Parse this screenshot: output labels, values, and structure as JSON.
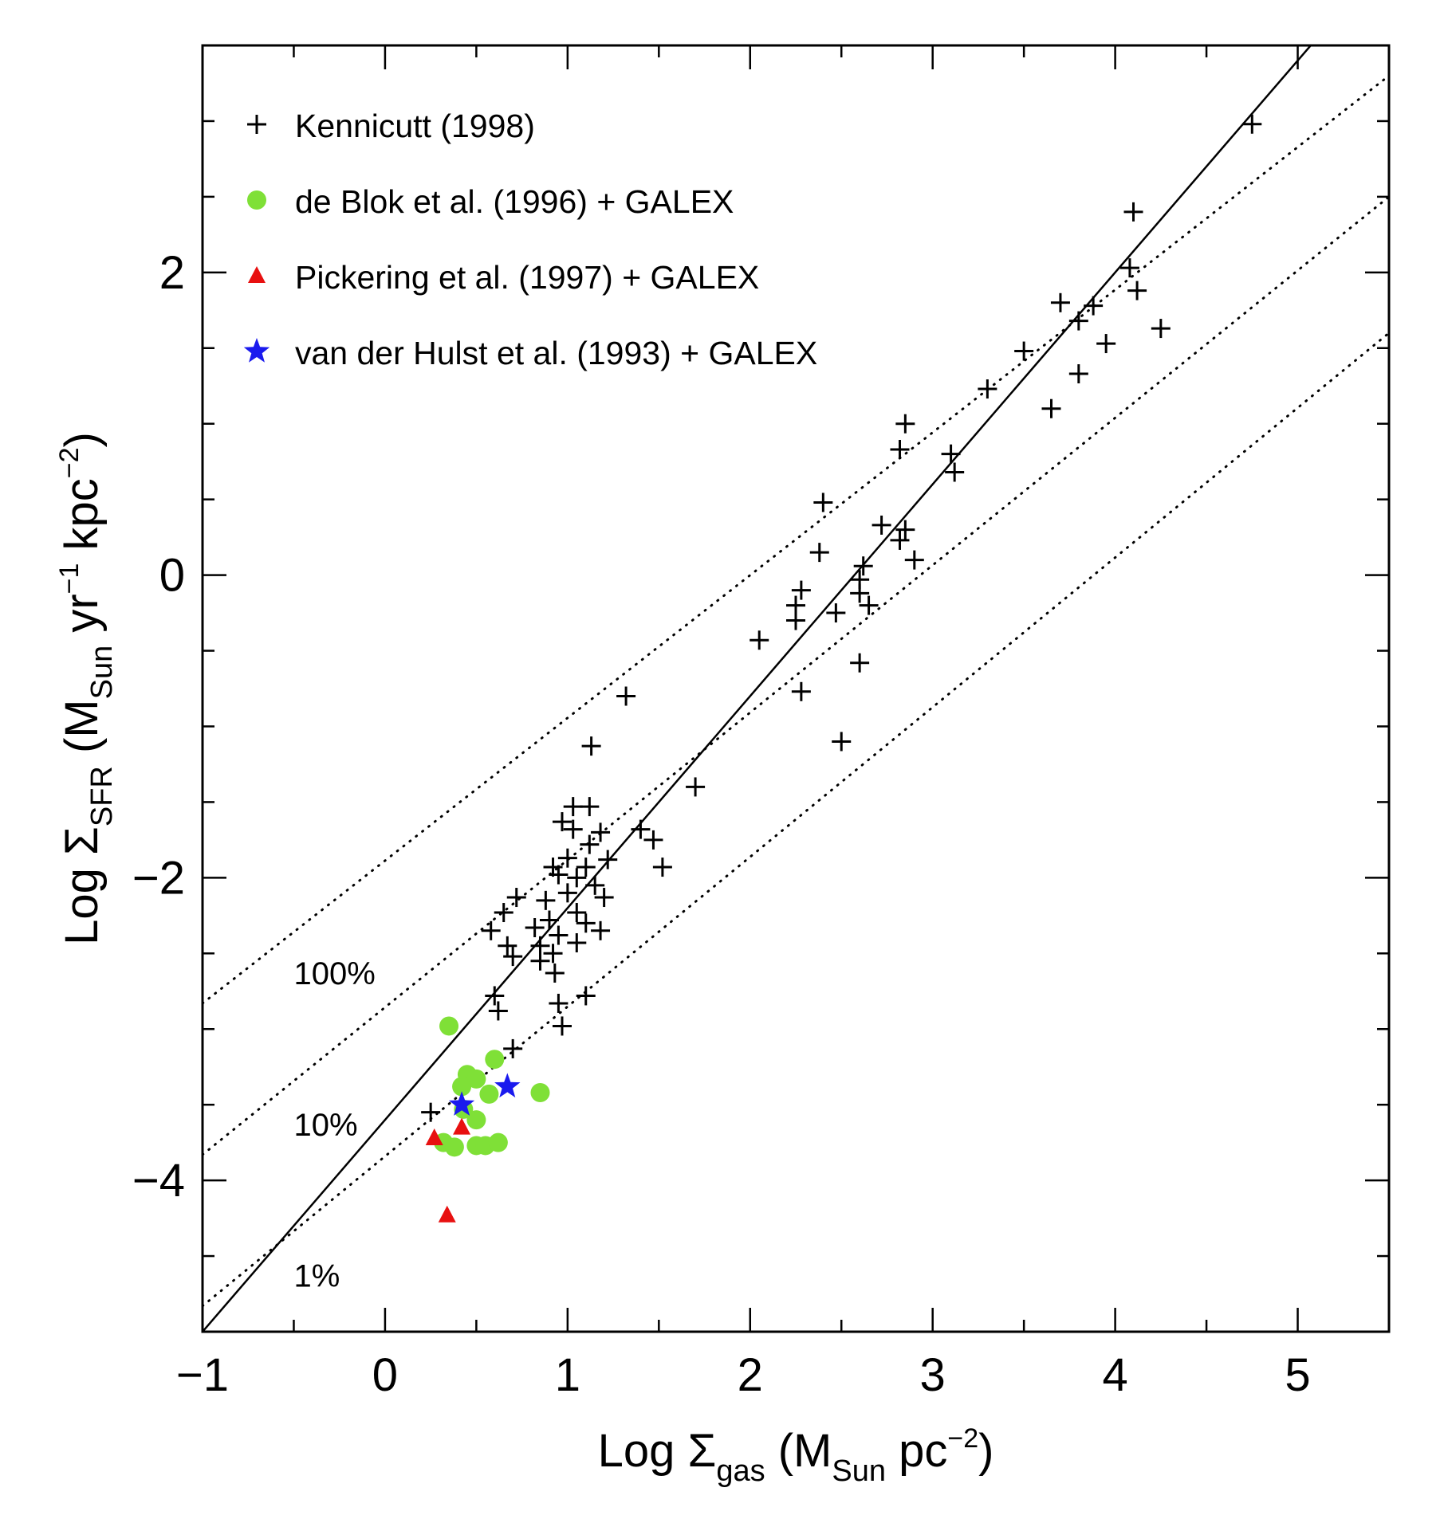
{
  "chart_data": {
    "type": "scatter",
    "title": "",
    "xlabel": {
      "prefix": "Log Σ",
      "sub": "gas",
      "unit_open": " (M",
      "unit_sub": "Sun",
      "unit_rest": " pc",
      "sup": "−2",
      "close": ")"
    },
    "ylabel": {
      "prefix": "Log Σ",
      "sub": "SFR",
      "unit_open": " (M",
      "unit_sub": "Sun",
      "mid": " yr",
      "sup1": "−1",
      "mid2": " kpc",
      "sup2": "−2",
      "close": ")"
    },
    "xlim": [
      -1,
      5.5
    ],
    "ylim": [
      -5,
      3.5
    ],
    "xticks": [
      -1,
      0,
      1,
      2,
      3,
      4,
      5
    ],
    "xtick_labels": [
      "−1",
      "0",
      "1",
      "2",
      "3",
      "4",
      "5"
    ],
    "yticks": [
      -4,
      -2,
      0,
      2
    ],
    "ytick_labels": [
      "−4",
      "−2",
      "0",
      "2"
    ],
    "lines": [
      {
        "name": "schmidt-law-fit",
        "style": "solid",
        "points": [
          [
            -1,
            -5.0
          ],
          [
            5.5,
            4.1
          ]
        ]
      },
      {
        "name": "efficiency-100",
        "style": "dotted",
        "label": "100%",
        "points": [
          [
            -1,
            -2.83
          ],
          [
            5.5,
            3.3
          ]
        ]
      },
      {
        "name": "efficiency-10",
        "style": "dotted",
        "label": "10%",
        "points": [
          [
            -1,
            -3.83
          ],
          [
            5.5,
            2.5
          ]
        ]
      },
      {
        "name": "efficiency-1",
        "style": "dotted",
        "label": "1%",
        "points": [
          [
            -1,
            -4.83
          ],
          [
            5.5,
            1.6
          ]
        ]
      }
    ],
    "annotations": [
      {
        "text": "100%",
        "x": -0.5,
        "y": -2.63
      },
      {
        "text": "10%",
        "x": -0.5,
        "y": -3.63
      },
      {
        "text": "1%",
        "x": -0.5,
        "y": -4.63
      }
    ],
    "legend_position": "top-left",
    "series": [
      {
        "name": "Kennicutt (1998)",
        "marker": "plus",
        "color": "#000000",
        "points": [
          [
            4.75,
            2.98
          ],
          [
            4.1,
            2.4
          ],
          [
            4.08,
            2.03
          ],
          [
            4.12,
            1.88
          ],
          [
            4.25,
            1.63
          ],
          [
            3.7,
            1.8
          ],
          [
            3.88,
            1.78
          ],
          [
            3.8,
            1.68
          ],
          [
            3.5,
            1.48
          ],
          [
            3.95,
            1.53
          ],
          [
            3.8,
            1.33
          ],
          [
            3.65,
            1.1
          ],
          [
            3.3,
            1.23
          ],
          [
            2.85,
            1.0
          ],
          [
            2.82,
            0.83
          ],
          [
            3.1,
            0.8
          ],
          [
            3.12,
            0.68
          ],
          [
            2.4,
            0.48
          ],
          [
            2.72,
            0.33
          ],
          [
            2.85,
            0.3
          ],
          [
            2.82,
            0.23
          ],
          [
            2.38,
            0.15
          ],
          [
            2.9,
            0.1
          ],
          [
            2.62,
            0.06
          ],
          [
            2.6,
            -0.03
          ],
          [
            2.28,
            -0.1
          ],
          [
            2.6,
            -0.12
          ],
          [
            2.25,
            -0.2
          ],
          [
            2.65,
            -0.2
          ],
          [
            2.47,
            -0.25
          ],
          [
            2.25,
            -0.3
          ],
          [
            2.05,
            -0.43
          ],
          [
            2.6,
            -0.58
          ],
          [
            2.28,
            -0.77
          ],
          [
            1.32,
            -0.8
          ],
          [
            2.5,
            -1.1
          ],
          [
            1.13,
            -1.13
          ],
          [
            1.7,
            -1.4
          ],
          [
            1.03,
            -1.53
          ],
          [
            1.12,
            -1.53
          ],
          [
            0.97,
            -1.63
          ],
          [
            1.03,
            -1.68
          ],
          [
            1.18,
            -1.7
          ],
          [
            1.4,
            -1.68
          ],
          [
            1.12,
            -1.78
          ],
          [
            1.47,
            -1.75
          ],
          [
            0.92,
            -1.93
          ],
          [
            1.0,
            -1.87
          ],
          [
            1.1,
            -1.93
          ],
          [
            1.22,
            -1.88
          ],
          [
            1.52,
            -1.93
          ],
          [
            0.95,
            -1.98
          ],
          [
            1.05,
            -2.0
          ],
          [
            1.15,
            -2.05
          ],
          [
            1.0,
            -2.1
          ],
          [
            0.72,
            -2.13
          ],
          [
            0.88,
            -2.15
          ],
          [
            1.2,
            -2.13
          ],
          [
            1.05,
            -2.23
          ],
          [
            0.65,
            -2.23
          ],
          [
            0.9,
            -2.28
          ],
          [
            1.1,
            -2.3
          ],
          [
            0.82,
            -2.33
          ],
          [
            0.95,
            -2.38
          ],
          [
            1.18,
            -2.35
          ],
          [
            0.58,
            -2.35
          ],
          [
            0.67,
            -2.45
          ],
          [
            0.85,
            -2.45
          ],
          [
            1.05,
            -2.43
          ],
          [
            0.92,
            -2.5
          ],
          [
            0.7,
            -2.52
          ],
          [
            0.85,
            -2.55
          ],
          [
            0.93,
            -2.63
          ],
          [
            0.6,
            -2.78
          ],
          [
            0.95,
            -2.83
          ],
          [
            1.1,
            -2.78
          ],
          [
            0.62,
            -2.88
          ],
          [
            0.97,
            -2.98
          ],
          [
            0.7,
            -3.13
          ],
          [
            0.25,
            -3.55
          ]
        ]
      },
      {
        "name": "de Blok et al. (1996) + GALEX",
        "marker": "circle",
        "color": "#7fe037",
        "points": [
          [
            0.35,
            -2.98
          ],
          [
            0.6,
            -3.2
          ],
          [
            0.45,
            -3.3
          ],
          [
            0.5,
            -3.33
          ],
          [
            0.42,
            -3.38
          ],
          [
            0.85,
            -3.42
          ],
          [
            0.57,
            -3.43
          ],
          [
            0.43,
            -3.53
          ],
          [
            0.5,
            -3.6
          ],
          [
            0.32,
            -3.75
          ],
          [
            0.38,
            -3.78
          ],
          [
            0.5,
            -3.77
          ],
          [
            0.55,
            -3.77
          ],
          [
            0.62,
            -3.75
          ]
        ]
      },
      {
        "name": "Pickering et al. (1997) + GALEX",
        "marker": "triangle",
        "color": "#e81010",
        "points": [
          [
            0.27,
            -3.72
          ],
          [
            0.42,
            -3.65
          ],
          [
            0.34,
            -4.23
          ]
        ]
      },
      {
        "name": "van der Hulst et al. (1993) + GALEX",
        "marker": "star",
        "color": "#1a1aee",
        "points": [
          [
            0.42,
            -3.5
          ],
          [
            0.67,
            -3.38
          ]
        ]
      }
    ]
  }
}
